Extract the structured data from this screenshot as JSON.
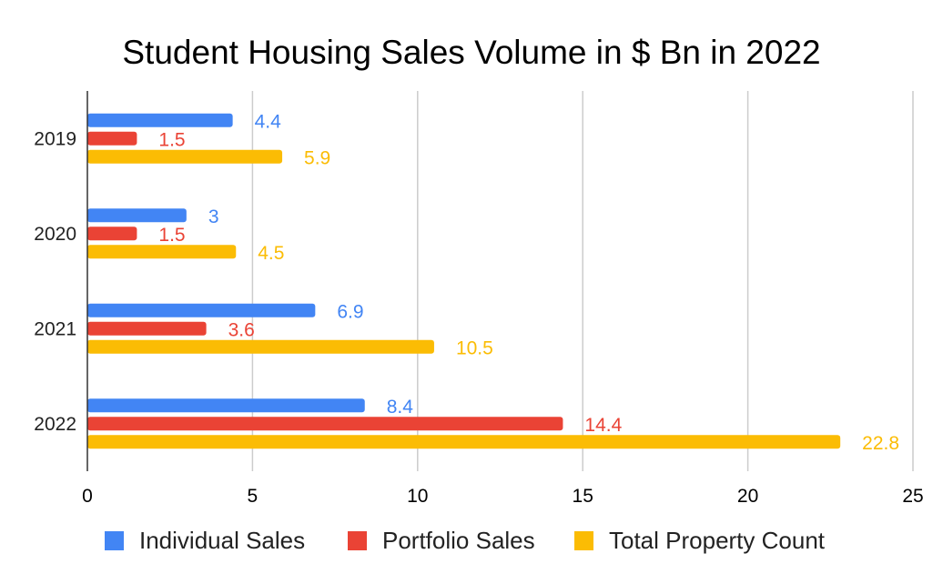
{
  "chart_data": {
    "type": "bar",
    "orientation": "horizontal",
    "title": "Student Housing Sales Volume in $ Bn in 2022",
    "xlabel": "",
    "ylabel": "",
    "xlim": [
      0,
      25
    ],
    "x_ticks": [
      "0",
      "5",
      "10",
      "15",
      "20",
      "25"
    ],
    "grid": true,
    "legend_position": "bottom",
    "categories": [
      "2019",
      "2020",
      "2021",
      "2022"
    ],
    "series": [
      {
        "name": "Individual Sales",
        "color": "#4285f4",
        "values": [
          4.4,
          3,
          6.9,
          8.4
        ],
        "labels": [
          "4.4",
          "3",
          "6.9",
          "8.4"
        ]
      },
      {
        "name": "Portfolio Sales",
        "color": "#ea4335",
        "values": [
          1.5,
          1.5,
          3.6,
          14.4
        ],
        "labels": [
          "1.5",
          "1.5",
          "3.6",
          "14.4"
        ]
      },
      {
        "name": "Total Property Count",
        "color": "#fbbc04",
        "values": [
          5.9,
          4.5,
          10.5,
          22.8
        ],
        "labels": [
          "5.9",
          "4.5",
          "10.5",
          "22.8"
        ]
      }
    ]
  }
}
